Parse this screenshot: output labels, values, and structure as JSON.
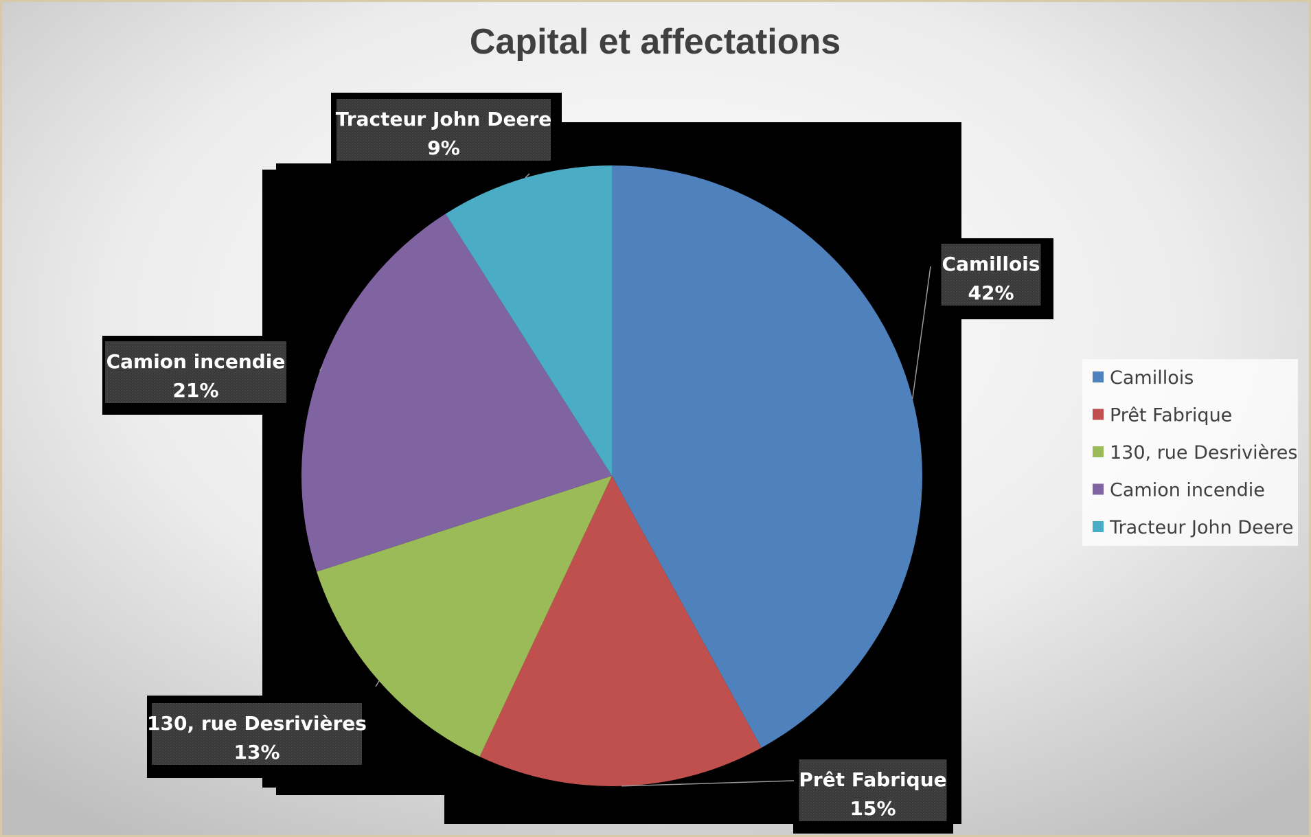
{
  "chart_data": {
    "type": "pie",
    "title": "Capital et affectations",
    "series": [
      {
        "categories": [
          "Camillois",
          "Prêt Fabrique",
          "130, rue Desrivières",
          "Camion incendie",
          "Tracteur John Deere"
        ],
        "values": [
          42,
          15,
          13,
          21,
          9
        ],
        "labels": [
          "42%",
          "15%",
          "13%",
          "21%",
          "9%"
        ]
      }
    ],
    "colors": [
      "#4F81BD",
      "#C0504D",
      "#9BBB59",
      "#8064A2",
      "#4BACC6"
    ],
    "legend": {
      "position": "right",
      "entries": [
        "Camillois",
        "Prêt Fabrique",
        "130, rue Desrivières",
        "Camion incendie",
        "Tracteur John Deere"
      ]
    },
    "data_labels": "category name and percentage, outside with leader lines"
  }
}
